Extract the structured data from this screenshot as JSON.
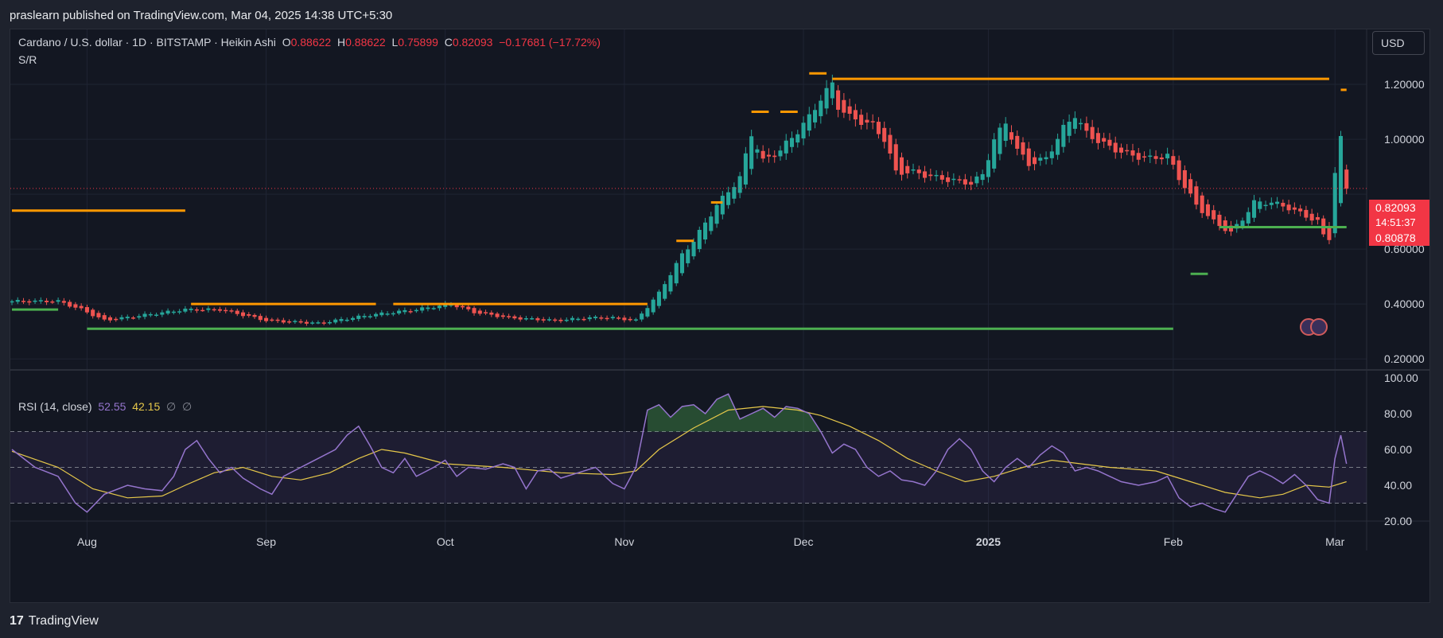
{
  "header": {
    "publisher_text": "praslearn published on TradingView.com, Mar 04, 2025 14:38 UTC+5:30"
  },
  "legend": {
    "symbol": "Cardano / U.S. dollar · 1D · BITSTAMP · Heikin Ashi",
    "open_label": "O",
    "open": "0.88622",
    "high_label": "H",
    "high": "0.88622",
    "low_label": "L",
    "low": "0.75899",
    "close_label": "C",
    "close": "0.82093",
    "change": "−0.17681 (−17.72%)",
    "indicator": "S/R"
  },
  "rsi_legend": {
    "title": "RSI (14, close)",
    "value_rsi": "52.55",
    "value_ma": "42.15",
    "sym1": "∅",
    "sym2": "∅"
  },
  "currency_button": "USD",
  "price_labels": {
    "last": "0.82093",
    "countdown": "14:51:37",
    "level": "0.80878"
  },
  "footer": {
    "brand_mark": "17",
    "brand": "TradingView"
  },
  "colors": {
    "up": "#26a69a",
    "down": "#ef5350",
    "resistance": "#ff9800",
    "support": "#4caf50",
    "rsi": "#9575cd",
    "rsi_ma": "#e6c84a"
  },
  "chart_data": {
    "type": "candlestick",
    "title": "Cardano / U.S. dollar · 1D · BITSTAMP · Heikin Ashi",
    "price_axis": {
      "ticks": [
        "1.20000",
        "1.00000",
        "0.60000",
        "0.40000",
        "0.20000"
      ],
      "tick_values": [
        1.2,
        1.0,
        0.6,
        0.4,
        0.2
      ],
      "range": [
        0.16,
        1.4
      ]
    },
    "time_axis": {
      "labels": [
        "Aug",
        "Sep",
        "Oct",
        "Nov",
        "Dec",
        "2025",
        "Feb",
        "Mar"
      ],
      "label_days": [
        13,
        44,
        75,
        106,
        137,
        169,
        201,
        229
      ]
    },
    "days": 232,
    "key_closes": [
      [
        0,
        0.41
      ],
      [
        8,
        0.41
      ],
      [
        12,
        0.38
      ],
      [
        16,
        0.34
      ],
      [
        23,
        0.36
      ],
      [
        30,
        0.38
      ],
      [
        36,
        0.38
      ],
      [
        44,
        0.34
      ],
      [
        53,
        0.33
      ],
      [
        62,
        0.36
      ],
      [
        70,
        0.38
      ],
      [
        76,
        0.4
      ],
      [
        80,
        0.37
      ],
      [
        86,
        0.35
      ],
      [
        94,
        0.34
      ],
      [
        100,
        0.35
      ],
      [
        104,
        0.35
      ],
      [
        108,
        0.34
      ],
      [
        112,
        0.44
      ],
      [
        116,
        0.58
      ],
      [
        118,
        0.63
      ],
      [
        122,
        0.76
      ],
      [
        126,
        0.86
      ],
      [
        128,
        1.02
      ],
      [
        130,
        0.92
      ],
      [
        133,
        0.96
      ],
      [
        136,
        1.03
      ],
      [
        138,
        1.08
      ],
      [
        140,
        1.15
      ],
      [
        142,
        1.2
      ],
      [
        143,
        1.12
      ],
      [
        145,
        1.08
      ],
      [
        149,
        1.05
      ],
      [
        151,
        1.0
      ],
      [
        153,
        0.88
      ],
      [
        156,
        0.88
      ],
      [
        160,
        0.86
      ],
      [
        163,
        0.85
      ],
      [
        166,
        0.84
      ],
      [
        168,
        0.87
      ],
      [
        170,
        1.0
      ],
      [
        172,
        1.06
      ],
      [
        174,
        0.96
      ],
      [
        176,
        0.91
      ],
      [
        179,
        0.93
      ],
      [
        182,
        1.04
      ],
      [
        184,
        1.09
      ],
      [
        186,
        1.02
      ],
      [
        190,
        0.97
      ],
      [
        194,
        0.94
      ],
      [
        197,
        0.93
      ],
      [
        200,
        0.94
      ],
      [
        202,
        0.86
      ],
      [
        205,
        0.76
      ],
      [
        208,
        0.7
      ],
      [
        211,
        0.66
      ],
      [
        213,
        0.71
      ],
      [
        215,
        0.77
      ],
      [
        218,
        0.77
      ],
      [
        221,
        0.75
      ],
      [
        224,
        0.72
      ],
      [
        226,
        0.7
      ],
      [
        227,
        0.65
      ],
      [
        228,
        0.64
      ],
      [
        229,
        0.88
      ],
      [
        230,
        1.0
      ],
      [
        231,
        0.82
      ]
    ],
    "resistance_lines": [
      {
        "price": 0.74,
        "from_day": 0,
        "to_day": 30
      },
      {
        "price": 0.4,
        "from_day": 31,
        "to_day": 63
      },
      {
        "price": 0.4,
        "from_day": 66,
        "to_day": 110
      },
      {
        "price": 1.22,
        "from_day": 142,
        "to_day": 228
      },
      {
        "price": 1.24,
        "from_day": 138,
        "to_day": 141
      },
      {
        "price": 1.1,
        "from_day": 128,
        "to_day": 131
      },
      {
        "price": 1.1,
        "from_day": 133,
        "to_day": 136
      },
      {
        "price": 0.77,
        "from_day": 121,
        "to_day": 123
      },
      {
        "price": 0.63,
        "from_day": 115,
        "to_day": 118
      },
      {
        "price": 1.18,
        "from_day": 230,
        "to_day": 231
      }
    ],
    "support_lines": [
      {
        "price": 0.38,
        "from_day": 0,
        "to_day": 8
      },
      {
        "price": 0.31,
        "from_day": 13,
        "to_day": 201
      },
      {
        "price": 0.68,
        "from_day": 209,
        "to_day": 231
      },
      {
        "price": 0.51,
        "from_day": 204,
        "to_day": 207
      }
    ],
    "last_price": 0.82093,
    "rsi": {
      "name": "RSI (14, close)",
      "axis_ticks": [
        "100.00",
        "80.00",
        "60.00",
        "40.00",
        "20.00"
      ],
      "tick_values": [
        100,
        80,
        60,
        40,
        20
      ],
      "bands": {
        "upper": 70,
        "middle": 50,
        "lower": 30
      },
      "rsi_keypoints": [
        [
          0,
          60
        ],
        [
          4,
          50
        ],
        [
          8,
          45
        ],
        [
          11,
          30
        ],
        [
          13,
          25
        ],
        [
          16,
          35
        ],
        [
          20,
          40
        ],
        [
          23,
          38
        ],
        [
          26,
          37
        ],
        [
          28,
          45
        ],
        [
          30,
          60
        ],
        [
          32,
          65
        ],
        [
          34,
          55
        ],
        [
          36,
          47
        ],
        [
          38,
          50
        ],
        [
          40,
          44
        ],
        [
          43,
          38
        ],
        [
          45,
          35
        ],
        [
          47,
          45
        ],
        [
          50,
          50
        ],
        [
          53,
          55
        ],
        [
          56,
          60
        ],
        [
          58,
          68
        ],
        [
          60,
          73
        ],
        [
          62,
          62
        ],
        [
          64,
          50
        ],
        [
          66,
          47
        ],
        [
          68,
          55
        ],
        [
          70,
          45
        ],
        [
          73,
          50
        ],
        [
          75,
          54
        ],
        [
          77,
          45
        ],
        [
          79,
          50
        ],
        [
          82,
          49
        ],
        [
          85,
          52
        ],
        [
          87,
          50
        ],
        [
          89,
          38
        ],
        [
          91,
          48
        ],
        [
          93,
          49
        ],
        [
          95,
          44
        ],
        [
          98,
          47
        ],
        [
          101,
          50
        ],
        [
          104,
          41
        ],
        [
          106,
          38
        ],
        [
          108,
          50
        ],
        [
          110,
          82
        ],
        [
          112,
          85
        ],
        [
          114,
          78
        ],
        [
          116,
          84
        ],
        [
          118,
          85
        ],
        [
          120,
          80
        ],
        [
          122,
          88
        ],
        [
          124,
          91
        ],
        [
          126,
          77
        ],
        [
          128,
          80
        ],
        [
          130,
          83
        ],
        [
          132,
          78
        ],
        [
          134,
          84
        ],
        [
          136,
          83
        ],
        [
          138,
          80
        ],
        [
          140,
          70
        ],
        [
          142,
          58
        ],
        [
          144,
          63
        ],
        [
          146,
          60
        ],
        [
          148,
          50
        ],
        [
          150,
          45
        ],
        [
          152,
          48
        ],
        [
          154,
          43
        ],
        [
          156,
          42
        ],
        [
          158,
          40
        ],
        [
          160,
          48
        ],
        [
          162,
          60
        ],
        [
          164,
          66
        ],
        [
          166,
          60
        ],
        [
          168,
          48
        ],
        [
          170,
          42
        ],
        [
          172,
          50
        ],
        [
          174,
          55
        ],
        [
          176,
          50
        ],
        [
          178,
          57
        ],
        [
          180,
          62
        ],
        [
          182,
          58
        ],
        [
          184,
          48
        ],
        [
          186,
          50
        ],
        [
          188,
          48
        ],
        [
          190,
          45
        ],
        [
          192,
          42
        ],
        [
          195,
          40
        ],
        [
          198,
          42
        ],
        [
          200,
          45
        ],
        [
          202,
          33
        ],
        [
          204,
          28
        ],
        [
          206,
          30
        ],
        [
          208,
          27
        ],
        [
          210,
          25
        ],
        [
          212,
          35
        ],
        [
          214,
          45
        ],
        [
          216,
          48
        ],
        [
          218,
          45
        ],
        [
          220,
          41
        ],
        [
          222,
          46
        ],
        [
          224,
          40
        ],
        [
          226,
          32
        ],
        [
          228,
          30
        ],
        [
          229,
          55
        ],
        [
          230,
          68
        ],
        [
          231,
          52
        ]
      ],
      "ma_keypoints": [
        [
          0,
          59
        ],
        [
          8,
          50
        ],
        [
          14,
          38
        ],
        [
          20,
          33
        ],
        [
          26,
          34
        ],
        [
          30,
          40
        ],
        [
          35,
          47
        ],
        [
          40,
          50
        ],
        [
          45,
          45
        ],
        [
          50,
          43
        ],
        [
          55,
          47
        ],
        [
          60,
          55
        ],
        [
          64,
          60
        ],
        [
          68,
          58
        ],
        [
          75,
          52
        ],
        [
          85,
          50
        ],
        [
          95,
          47
        ],
        [
          104,
          46
        ],
        [
          108,
          48
        ],
        [
          112,
          60
        ],
        [
          118,
          72
        ],
        [
          124,
          82
        ],
        [
          130,
          84
        ],
        [
          136,
          82
        ],
        [
          140,
          79
        ],
        [
          145,
          73
        ],
        [
          150,
          65
        ],
        [
          155,
          55
        ],
        [
          160,
          48
        ],
        [
          165,
          42
        ],
        [
          170,
          45
        ],
        [
          175,
          50
        ],
        [
          180,
          54
        ],
        [
          185,
          52
        ],
        [
          190,
          50
        ],
        [
          198,
          48
        ],
        [
          204,
          42
        ],
        [
          210,
          36
        ],
        [
          216,
          33
        ],
        [
          220,
          35
        ],
        [
          224,
          40
        ],
        [
          228,
          39
        ],
        [
          231,
          42
        ]
      ]
    }
  }
}
